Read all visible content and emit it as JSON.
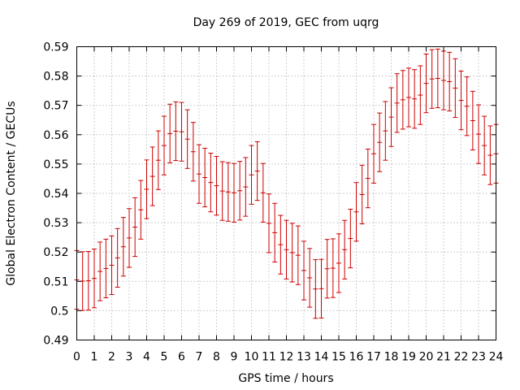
{
  "chart_data": {
    "type": "scatter",
    "title": "Day 269 of 2019, GEC from uqrg",
    "xlabel": "GPS time / hours",
    "ylabel": "Global Electron Content / GECUs",
    "xlim": [
      0,
      24
    ],
    "ylim": [
      0.49,
      0.59
    ],
    "x_ticks": [
      "0",
      "1",
      "2",
      "3",
      "4",
      "5",
      "6",
      "7",
      "8",
      "9",
      "10",
      "11",
      "12",
      "13",
      "14",
      "15",
      "16",
      "17",
      "18",
      "19",
      "20",
      "21",
      "22",
      "23",
      "24"
    ],
    "y_ticks": [
      "0.49",
      "0.5",
      "0.51",
      "0.52",
      "0.53",
      "0.54",
      "0.55",
      "0.56",
      "0.57",
      "0.58",
      "0.59"
    ],
    "grid": true,
    "marker_color": "#cc0000",
    "error_halfwidth": 0.01,
    "series": [
      {
        "x": [
          0,
          0.333,
          0.667,
          1,
          1.333,
          1.667,
          2,
          2.333,
          2.667,
          3,
          3.333,
          3.667,
          4,
          4.333,
          4.667,
          5,
          5.333,
          5.667,
          6,
          6.333,
          6.667,
          7,
          7.333,
          7.667,
          8,
          8.333,
          8.667,
          9,
          9.333,
          9.667,
          10,
          10.333,
          10.667,
          11,
          11.333,
          11.667,
          12,
          12.333,
          12.667,
          13,
          13.333,
          13.667,
          14,
          14.333,
          14.667,
          15,
          15.333,
          15.667,
          16,
          16.333,
          16.667,
          17,
          17.333,
          17.667,
          18,
          18.333,
          18.667,
          19,
          19.333,
          19.667,
          20,
          20.333,
          20.667,
          21,
          21.333,
          21.667,
          22,
          22.333,
          22.667,
          23,
          23.333,
          23.667,
          24
        ],
        "y": [
          0.5105,
          0.5101,
          0.5102,
          0.511,
          0.5134,
          0.5144,
          0.5155,
          0.518,
          0.5218,
          0.5248,
          0.5285,
          0.5344,
          0.5414,
          0.5458,
          0.5513,
          0.5563,
          0.5604,
          0.5612,
          0.561,
          0.5585,
          0.5542,
          0.5466,
          0.5454,
          0.5437,
          0.5426,
          0.5408,
          0.5405,
          0.5402,
          0.5409,
          0.5422,
          0.5463,
          0.5476,
          0.5402,
          0.5298,
          0.5266,
          0.5225,
          0.5208,
          0.5198,
          0.5189,
          0.5137,
          0.5112,
          0.5074,
          0.5075,
          0.5143,
          0.5145,
          0.5162,
          0.5208,
          0.5246,
          0.5337,
          0.5396,
          0.5451,
          0.5535,
          0.5574,
          0.5613,
          0.566,
          0.5708,
          0.5719,
          0.5727,
          0.5722,
          0.5735,
          0.5775,
          0.579,
          0.5792,
          0.5785,
          0.5781,
          0.5759,
          0.5717,
          0.5697,
          0.5648,
          0.5602,
          0.5563,
          0.553,
          0.5535
        ]
      }
    ]
  }
}
